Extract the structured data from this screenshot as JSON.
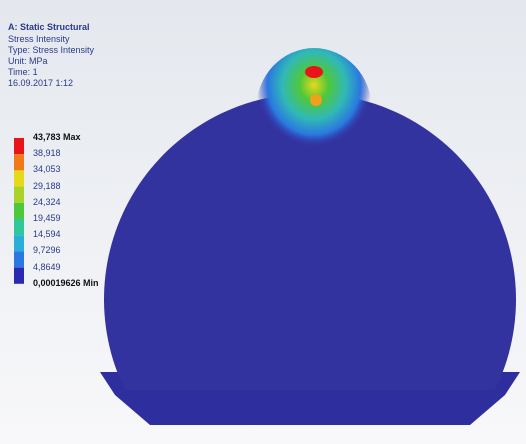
{
  "header": {
    "title": "A: Static Structural",
    "lines": [
      "Stress Intensity",
      "Type: Stress Intensity",
      "Unit: MPa",
      "Time: 1",
      "16.09.2017 1:12"
    ]
  },
  "legend": {
    "labels": [
      "43,783 Max",
      "38,918",
      "34,053",
      "29,188",
      "24,324",
      "19,459",
      "14,594",
      "9,7296",
      "4,8649",
      "0,00019626 Min"
    ],
    "colors": [
      "#e8141a",
      "#f07a1a",
      "#e8d81a",
      "#a8d42a",
      "#4ec83a",
      "#30c89a",
      "#2ab0d8",
      "#2a78e0",
      "#2a2ab0"
    ]
  }
}
